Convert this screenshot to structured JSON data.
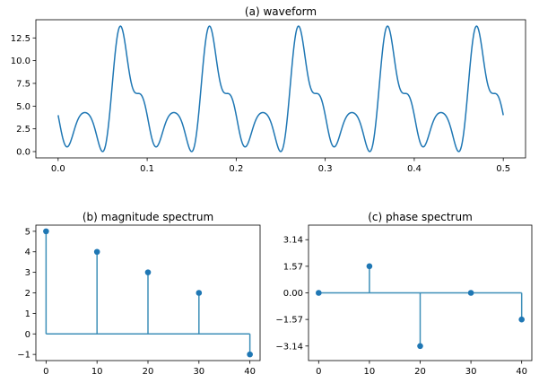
{
  "colors": {
    "series": "#1f77b4",
    "stem": "#3d8fb8"
  },
  "chart_data": [
    {
      "id": "waveform",
      "type": "line",
      "title": "(a) waveform",
      "xlabel": "",
      "ylabel": "",
      "xlim": [
        -0.025,
        0.525
      ],
      "ylim": [
        -0.69,
        14.5
      ],
      "xticks": [
        0.0,
        0.1,
        0.2,
        0.3,
        0.4,
        0.5
      ],
      "xtick_labels": [
        "0.0",
        "0.1",
        "0.2",
        "0.3",
        "0.4",
        "0.5"
      ],
      "yticks": [
        0.0,
        2.5,
        5.0,
        7.5,
        10.0,
        12.5
      ],
      "ytick_labels": [
        "0.0",
        "2.5",
        "5.0",
        "7.5",
        "10.0",
        "12.5"
      ],
      "grid": false,
      "signal": {
        "x_range": [
          0.0,
          0.5
        ],
        "fundamental_hz": 10,
        "dc": 5,
        "harmonics": [
          {
            "freq": 10,
            "amplitude": 4,
            "phase": 1.5708
          },
          {
            "freq": 20,
            "amplitude": 3,
            "phase": -3.1416
          },
          {
            "freq": 30,
            "amplitude": 2,
            "phase": 0
          },
          {
            "freq": 40,
            "amplitude": 1,
            "phase": 1.5708
          }
        ]
      }
    },
    {
      "id": "magnitude",
      "type": "stem",
      "title": "(b) magnitude spectrum",
      "xlabel": "",
      "ylabel": "",
      "x": [
        0,
        10,
        20,
        30,
        40
      ],
      "y": [
        5,
        4,
        3,
        2,
        -1
      ],
      "baseline": 0,
      "xlim": [
        -2,
        42
      ],
      "ylim": [
        -1.3,
        5.3
      ],
      "xticks": [
        0,
        10,
        20,
        30,
        40
      ],
      "xtick_labels": [
        "0",
        "10",
        "20",
        "30",
        "40"
      ],
      "yticks": [
        -1,
        0,
        1,
        2,
        3,
        4,
        5
      ],
      "ytick_labels": [
        "−1",
        "0",
        "1",
        "2",
        "3",
        "4",
        "5"
      ],
      "grid": false
    },
    {
      "id": "phase",
      "type": "stem",
      "title": "(c) phase spectrum",
      "xlabel": "",
      "ylabel": "",
      "x": [
        0,
        10,
        20,
        30,
        40
      ],
      "y": [
        0,
        1.5708,
        -3.1416,
        0,
        -1.5708
      ],
      "baseline": 0,
      "xlim": [
        -2,
        42
      ],
      "ylim": [
        -4.0,
        4.0
      ],
      "xticks": [
        0,
        10,
        20,
        30,
        40
      ],
      "xtick_labels": [
        "0",
        "10",
        "20",
        "30",
        "40"
      ],
      "yticks": [
        3.14,
        1.57,
        0.0,
        -1.57,
        -3.14
      ],
      "ytick_labels": [
        "3.14",
        "1.57",
        "0.00",
        "−1.57",
        "−3.14"
      ],
      "grid": false
    }
  ]
}
